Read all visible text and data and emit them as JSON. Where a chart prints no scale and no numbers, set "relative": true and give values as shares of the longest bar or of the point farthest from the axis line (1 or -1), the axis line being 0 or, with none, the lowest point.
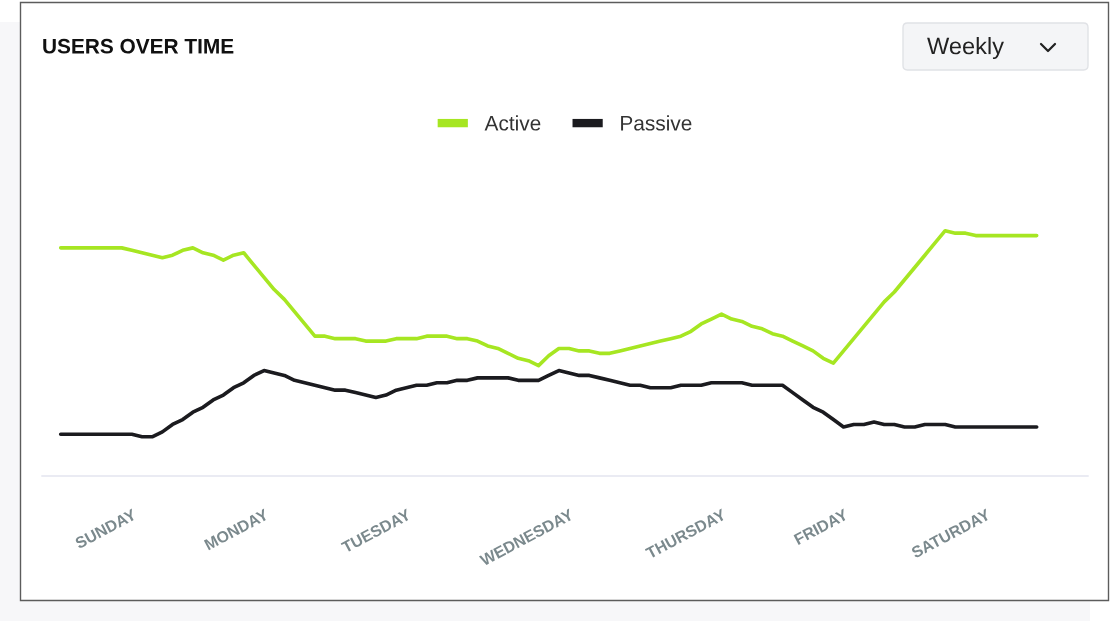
{
  "chart_data": {
    "type": "line",
    "title": "USERS OVER TIME",
    "annotations": [
      "Weekly"
    ],
    "relative": true,
    "legend": "top",
    "line_style": "solid",
    "categories": [
      null,
      null,
      null,
      null,
      null,
      null,
      null,
      "SUNDAY",
      null,
      null,
      null,
      null,
      null,
      null,
      null,
      null,
      null,
      null,
      null,
      null,
      "MONDAY",
      null,
      null,
      null,
      null,
      null,
      null,
      null,
      null,
      null,
      null,
      null,
      null,
      null,
      "TUESDAY",
      null,
      null,
      null,
      null,
      null,
      null,
      null,
      null,
      null,
      null,
      null,
      null,
      null,
      null,
      null,
      "WEDNESDAY",
      null,
      null,
      null,
      null,
      null,
      null,
      null,
      null,
      null,
      null,
      null,
      null,
      null,
      null,
      "THURSDAY",
      null,
      null,
      null,
      null,
      null,
      null,
      null,
      null,
      null,
      null,
      null,
      "FRIDAY",
      null,
      null,
      null,
      null,
      null,
      null,
      null,
      null,
      null,
      null,
      null,
      null,
      null,
      "SATURDAY",
      null,
      null,
      null,
      null,
      null
    ],
    "series": [
      {
        "name": "Active",
        "color": "#a6e622",
        "values": [
          0.93,
          0.93,
          0.93,
          0.93,
          0.93,
          0.93,
          0.93,
          0.92,
          0.91,
          0.9,
          0.89,
          0.9,
          0.92,
          0.93,
          0.91,
          0.9,
          0.88,
          0.9,
          0.91,
          0.86,
          0.81,
          0.76,
          0.72,
          0.67,
          0.62,
          0.57,
          0.57,
          0.56,
          0.56,
          0.56,
          0.55,
          0.55,
          0.55,
          0.56,
          0.56,
          0.56,
          0.57,
          0.57,
          0.57,
          0.56,
          0.56,
          0.55,
          0.53,
          0.52,
          0.5,
          0.48,
          0.47,
          0.45,
          0.49,
          0.52,
          0.52,
          0.51,
          0.51,
          0.5,
          0.5,
          0.51,
          0.52,
          0.53,
          0.54,
          0.55,
          0.56,
          0.57,
          0.59,
          0.62,
          0.64,
          0.66,
          0.64,
          0.63,
          0.61,
          0.6,
          0.58,
          0.57,
          0.55,
          0.53,
          0.51,
          0.48,
          0.46,
          0.51,
          0.56,
          0.61,
          0.66,
          0.71,
          0.75,
          0.8,
          0.85,
          0.9,
          0.95,
          1.0,
          0.99,
          0.99,
          0.98,
          0.98,
          0.98,
          0.98,
          0.98,
          0.98,
          0.98
        ]
      },
      {
        "name": "Passive",
        "color": "#1b1b1f",
        "values": [
          0.17,
          0.17,
          0.17,
          0.17,
          0.17,
          0.17,
          0.17,
          0.17,
          0.16,
          0.16,
          0.18,
          0.21,
          0.23,
          0.26,
          0.28,
          0.31,
          0.33,
          0.36,
          0.38,
          0.41,
          0.43,
          0.42,
          0.41,
          0.39,
          0.38,
          0.37,
          0.36,
          0.35,
          0.35,
          0.34,
          0.33,
          0.32,
          0.33,
          0.35,
          0.36,
          0.37,
          0.37,
          0.38,
          0.38,
          0.39,
          0.39,
          0.4,
          0.4,
          0.4,
          0.4,
          0.39,
          0.39,
          0.39,
          0.41,
          0.43,
          0.42,
          0.41,
          0.41,
          0.4,
          0.39,
          0.38,
          0.37,
          0.37,
          0.36,
          0.36,
          0.36,
          0.37,
          0.37,
          0.37,
          0.38,
          0.38,
          0.38,
          0.38,
          0.37,
          0.37,
          0.37,
          0.37,
          0.34,
          0.31,
          0.28,
          0.26,
          0.23,
          0.2,
          0.21,
          0.21,
          0.22,
          0.21,
          0.21,
          0.2,
          0.2,
          0.21,
          0.21,
          0.21,
          0.2,
          0.2,
          0.2,
          0.2,
          0.2,
          0.2,
          0.2,
          0.2,
          0.2
        ]
      }
    ]
  }
}
